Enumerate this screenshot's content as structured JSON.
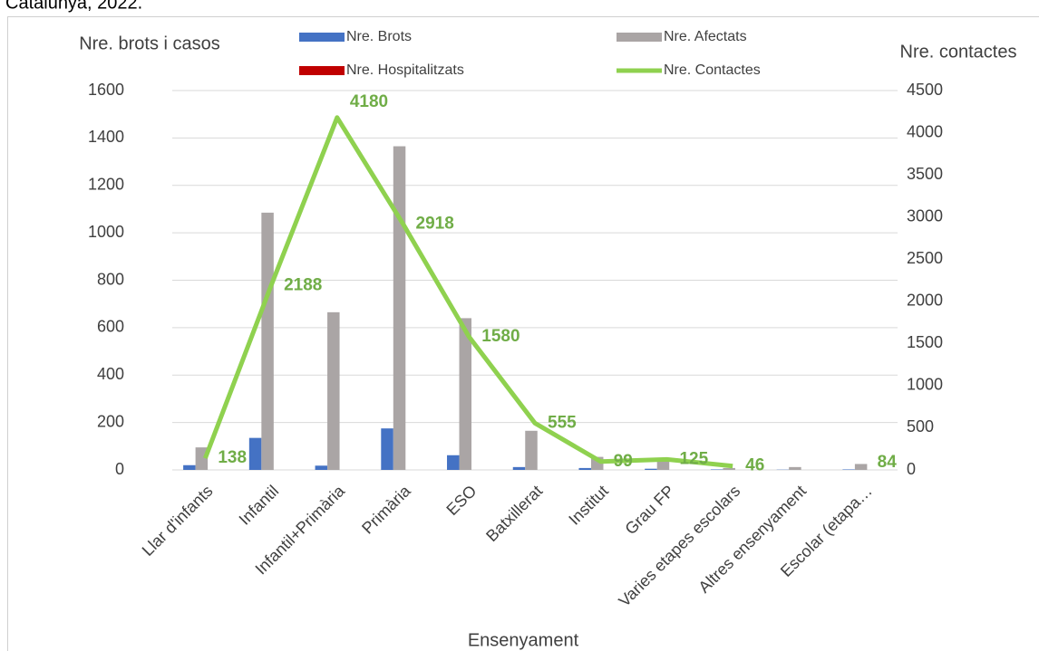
{
  "chart_data": {
    "type": "bar_line",
    "title": "Catalunya, 2022.",
    "y_label": "Nre. brots i casos",
    "y2_label": "Nre. contactes",
    "x_label": "Ensenyament",
    "categories": [
      "Llar d'infants",
      "Infantil",
      "Infantil+Primària",
      "Primària",
      "ESO",
      "Batxillerat",
      "Institut",
      "Grau FP",
      "Varies etapes escolars",
      "Altres ensenyament",
      "Escolar (etapa…"
    ],
    "series": [
      {
        "name": "Nre. Brots",
        "color": "#4472c4",
        "kind": "bar",
        "values": [
          20,
          135,
          18,
          175,
          62,
          12,
          8,
          5,
          2,
          1,
          2
        ]
      },
      {
        "name": "Nre. Afectats",
        "color": "#aaa5a5",
        "kind": "bar",
        "values": [
          95,
          1085,
          665,
          1365,
          640,
          165,
          55,
          50,
          8,
          12,
          25
        ]
      },
      {
        "name": "Nre. Hospitalitzats",
        "color": "#c00000",
        "kind": "bar",
        "values": [
          0,
          0,
          0,
          0,
          0,
          0,
          0,
          0,
          0,
          0,
          0
        ]
      },
      {
        "name": "Nre.  Contactes",
        "color": "#8fd14f",
        "kind": "line",
        "axis": "y2",
        "values": [
          138,
          2188,
          4180,
          2918,
          1580,
          555,
          99,
          125,
          46,
          null,
          84
        ]
      }
    ],
    "ylim": [
      0,
      1600
    ],
    "yticks": [
      0,
      200,
      400,
      600,
      800,
      1000,
      1200,
      1400,
      1600
    ],
    "y2lim": [
      0,
      4500
    ],
    "y2ticks": [
      0,
      500,
      1000,
      1500,
      2000,
      2500,
      3000,
      3500,
      4000,
      4500
    ],
    "grid": true
  }
}
